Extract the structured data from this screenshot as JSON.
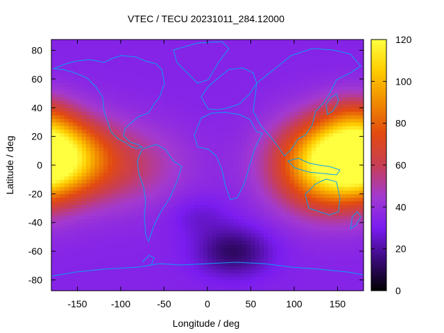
{
  "chart_data": {
    "type": "heatmap",
    "title": "VTEC / TECU 20231011_284.12000",
    "xlabel": "Longitude / deg",
    "ylabel": "Latitude / deg",
    "xlim": [
      -180,
      180
    ],
    "ylim": [
      -87.5,
      87.5
    ],
    "x_ticks": [
      -150,
      -100,
      -50,
      0,
      50,
      100,
      150
    ],
    "y_ticks": [
      -80,
      -60,
      -40,
      -20,
      0,
      20,
      40,
      60,
      80
    ],
    "colorbar": {
      "range": [
        0,
        120
      ],
      "ticks": [
        0,
        20,
        40,
        60,
        80,
        100,
        120
      ],
      "palette": [
        "#000000",
        "#3a0a7a",
        "#7a1cf0",
        "#a33ad0",
        "#c83e54",
        "#e24a10",
        "#f08a00",
        "#ffcc00",
        "#ffff40"
      ]
    },
    "coastline_color": "#0aa0f0",
    "features": [
      {
        "lon": 140,
        "lat": 0,
        "sigma_lon": 45,
        "sigma_lat": 22,
        "vtec": 70
      },
      {
        "lon": -180,
        "lat": 8,
        "sigma_lon": 40,
        "sigma_lat": 18,
        "vtec": 62
      },
      {
        "lon": -110,
        "lat": 0,
        "sigma_lon": 55,
        "sigma_lat": 20,
        "vtec": 25
      },
      {
        "lon": 170,
        "lat": 35,
        "sigma_lon": 25,
        "sigma_lat": 12,
        "vtec": 15
      },
      {
        "lon": 30,
        "lat": -60,
        "sigma_lon": 30,
        "sigma_lat": 12,
        "vtec": -22
      },
      {
        "lon": -10,
        "lat": -35,
        "sigma_lon": 25,
        "sigma_lat": 10,
        "vtec": -8
      }
    ],
    "background_vtec": 34
  }
}
